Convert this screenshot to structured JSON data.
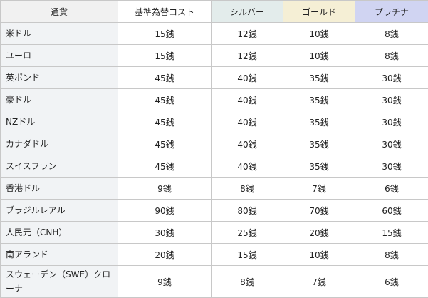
{
  "headers": {
    "currency": "通貨",
    "base": "基準為替コスト",
    "silver": "シルバー",
    "gold": "ゴールド",
    "platinum": "プラチナ"
  },
  "rows": [
    {
      "name": "米ドル",
      "base": "15銭",
      "silver": "12銭",
      "gold": "10銭",
      "platinum": "8銭"
    },
    {
      "name": "ユーロ",
      "base": "15銭",
      "silver": "12銭",
      "gold": "10銭",
      "platinum": "8銭"
    },
    {
      "name": "英ポンド",
      "base": "45銭",
      "silver": "40銭",
      "gold": "35銭",
      "platinum": "30銭"
    },
    {
      "name": "豪ドル",
      "base": "45銭",
      "silver": "40銭",
      "gold": "35銭",
      "platinum": "30銭"
    },
    {
      "name": "NZドル",
      "base": "45銭",
      "silver": "40銭",
      "gold": "35銭",
      "platinum": "30銭"
    },
    {
      "name": "カナダドル",
      "base": "45銭",
      "silver": "40銭",
      "gold": "35銭",
      "platinum": "30銭"
    },
    {
      "name": "スイスフラン",
      "base": "45銭",
      "silver": "40銭",
      "gold": "35銭",
      "platinum": "30銭"
    },
    {
      "name": "香港ドル",
      "base": "9銭",
      "silver": "8銭",
      "gold": "7銭",
      "platinum": "6銭"
    },
    {
      "name": "ブラジルレアル",
      "base": "90銭",
      "silver": "80銭",
      "gold": "70銭",
      "platinum": "60銭"
    },
    {
      "name": "人民元（CNH）",
      "base": "30銭",
      "silver": "25銭",
      "gold": "20銭",
      "platinum": "15銭"
    },
    {
      "name": "南アランド",
      "base": "20銭",
      "silver": "15銭",
      "gold": "10銭",
      "platinum": "8銭"
    },
    {
      "name": "スウェーデン（SWE）クローナ",
      "base": "9銭",
      "silver": "8銭",
      "gold": "7銭",
      "platinum": "6銭"
    }
  ]
}
